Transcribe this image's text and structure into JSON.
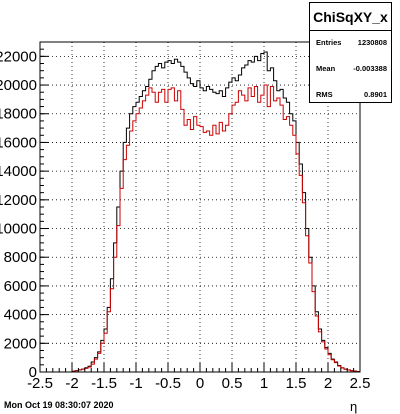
{
  "stats": {
    "title": "ChiSqXY_x",
    "rows": [
      {
        "label": "Entries",
        "value": "1230808"
      },
      {
        "label": "Mean",
        "value": "-0.003388"
      },
      {
        "label": "RMS",
        "value": "0.8901"
      }
    ]
  },
  "footer": {
    "timestamp": "Mon Oct 19 08:30:07 2020"
  },
  "chart_data": {
    "type": "histogram",
    "title": "ChiSqXY_x",
    "xlabel": "η",
    "ylabel": "",
    "xlim": [
      -2.5,
      2.5
    ],
    "ylim": [
      0,
      23000
    ],
    "x_ticks": [
      "-2.5",
      "-2",
      "-1.5",
      "-1",
      "-0.5",
      "0",
      "0.5",
      "1",
      "1.5",
      "2",
      "2.5"
    ],
    "y_ticks": [
      "2000",
      "4000",
      "6000",
      "8000",
      "10000",
      "12000",
      "14000",
      "16000",
      "18000",
      "20000",
      "22000"
    ],
    "grid": true,
    "bin_edges_start": -2.5,
    "bin_width": 0.05,
    "series": [
      {
        "color": "#000000",
        "values": [
          0,
          0,
          0,
          0,
          0,
          0,
          0,
          0,
          0,
          0,
          50,
          100,
          150,
          200,
          300,
          400,
          700,
          1000,
          1400,
          2200,
          3000,
          4500,
          6500,
          9000,
          11500,
          14000,
          16000,
          17000,
          18000,
          18500,
          18800,
          19200,
          19600,
          19900,
          20400,
          21000,
          21300,
          21500,
          21200,
          21600,
          21700,
          21500,
          21800,
          21600,
          21300,
          20900,
          20500,
          20100,
          19900,
          20300,
          19800,
          19600,
          19900,
          19700,
          19500,
          19400,
          19600,
          19200,
          19800,
          20200,
          20500,
          20300,
          20700,
          21200,
          21400,
          21700,
          21600,
          22000,
          21700,
          22200,
          22300,
          21000,
          21200,
          20300,
          19600,
          19700,
          19100,
          18800,
          18000,
          17500,
          16000,
          14500,
          12500,
          10000,
          8000,
          6000,
          4200,
          3000,
          2200,
          1700,
          1300,
          900,
          700,
          450,
          300,
          200,
          150,
          100,
          60,
          30
        ]
      },
      {
        "color": "#cc0000",
        "values": [
          0,
          0,
          0,
          0,
          0,
          0,
          0,
          0,
          0,
          0,
          50,
          100,
          150,
          200,
          250,
          350,
          550,
          900,
          1300,
          2000,
          2700,
          4200,
          5800,
          8000,
          10200,
          12800,
          14800,
          15800,
          16800,
          17500,
          18000,
          18400,
          18900,
          19300,
          19800,
          19500,
          18800,
          19500,
          19700,
          18800,
          19700,
          19800,
          18900,
          19600,
          18300,
          17200,
          17600,
          16900,
          17800,
          17200,
          17100,
          16700,
          16800,
          16500,
          17200,
          16600,
          17400,
          16800,
          17200,
          18000,
          18600,
          18800,
          19600,
          19300,
          18900,
          19800,
          19200,
          19900,
          18800,
          19300,
          20000,
          18500,
          19900,
          18900,
          19100,
          18600,
          17600,
          17800,
          17200,
          16500,
          15200,
          13700,
          11800,
          9500,
          7600,
          5600,
          3900,
          2800,
          2100,
          1600,
          1200,
          850,
          650,
          420,
          280,
          190,
          140,
          90,
          50,
          25
        ]
      }
    ]
  }
}
